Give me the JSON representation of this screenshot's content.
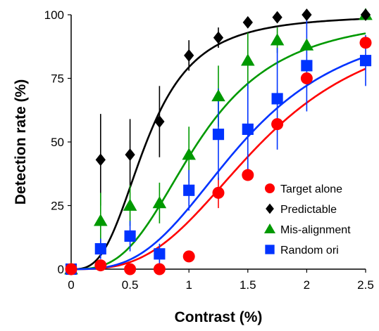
{
  "chart_data": {
    "type": "scatter",
    "title": "",
    "xlabel": "Contrast  (%)",
    "ylabel": "Detection rate  (%)",
    "xlim": [
      0,
      2.5
    ],
    "ylim": [
      0,
      100
    ],
    "xticks": [
      0,
      0.5,
      1,
      1.5,
      2,
      2.5
    ],
    "xtick_labels": [
      "0",
      "0.5",
      "1",
      "1.5",
      "2",
      "2.5"
    ],
    "yticks": [
      0,
      25,
      50,
      75,
      100
    ],
    "ytick_labels": [
      "0",
      "25",
      "50",
      "75",
      "100"
    ],
    "grid": false,
    "legend_position": "bottom-right",
    "x": [
      0,
      0.25,
      0.5,
      0.75,
      1,
      1.25,
      1.5,
      1.75,
      2,
      2.5
    ],
    "series": [
      {
        "name": "Target alone",
        "color": "#ff0000",
        "marker": "circle",
        "values": [
          0,
          1.5,
          0,
          0,
          5,
          30,
          37,
          57,
          75,
          89
        ],
        "error": [
          0,
          0,
          0,
          0,
          0,
          6,
          0,
          0,
          0,
          0
        ],
        "fit": {
          "c50": 1.62,
          "slope": 5.5
        }
      },
      {
        "name": "Predictable",
        "color": "#000000",
        "marker": "diamond",
        "values": [
          0,
          43,
          45,
          58,
          84,
          91,
          97,
          99,
          100,
          100
        ],
        "error": [
          0,
          18,
          14,
          14,
          6,
          4,
          2,
          0,
          0,
          0
        ],
        "fit": {
          "c50": 0.64,
          "slope": 5.5
        }
      },
      {
        "name": "Mis-alignment",
        "color": "#009900",
        "marker": "triangle",
        "values": [
          0,
          19,
          25,
          26,
          45,
          68,
          82,
          90,
          88,
          100
        ],
        "error": [
          0,
          11,
          8,
          8,
          11,
          12,
          11,
          5,
          0,
          0
        ],
        "fit": {
          "c50": 1.08,
          "slope": 5.5
        }
      },
      {
        "name": "Random ori",
        "color": "#0033ff",
        "marker": "square",
        "values": [
          0,
          8,
          13,
          6,
          31,
          53,
          55,
          67,
          80,
          82
        ],
        "error": [
          0,
          4,
          6,
          4,
          8,
          18,
          18,
          20,
          18,
          10
        ],
        "fit": {
          "c50": 1.46,
          "slope": 5.5
        }
      }
    ]
  }
}
